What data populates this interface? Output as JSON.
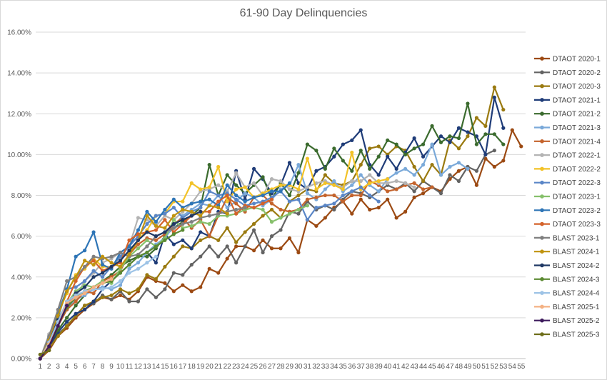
{
  "chart_data": {
    "type": "line",
    "title": "61-90 Day Delinquencies",
    "xlabel": "",
    "ylabel": "",
    "ylim": [
      0,
      0.16
    ],
    "y_ticks": [
      "0.00%",
      "2.00%",
      "4.00%",
      "6.00%",
      "8.00%",
      "10.00%",
      "12.00%",
      "14.00%",
      "16.00%"
    ],
    "x_categories": [
      1,
      2,
      3,
      4,
      5,
      6,
      7,
      8,
      9,
      10,
      11,
      12,
      13,
      14,
      15,
      16,
      17,
      18,
      19,
      20,
      21,
      22,
      23,
      24,
      25,
      26,
      27,
      28,
      29,
      30,
      31,
      32,
      33,
      34,
      35,
      36,
      37,
      38,
      39,
      40,
      41,
      42,
      43,
      44,
      45,
      46,
      47,
      48,
      49,
      50,
      51,
      52,
      53,
      54,
      55
    ],
    "grid": "horizontal",
    "legend_position": "right",
    "series": [
      {
        "name": "DTAOT 2020-1",
        "color": "#9c4a13",
        "values": [
          0,
          0.004,
          0.011,
          0.015,
          0.02,
          0.024,
          0.027,
          0.03,
          0.029,
          0.031,
          0.029,
          0.033,
          0.04,
          0.038,
          0.037,
          0.033,
          0.036,
          0.033,
          0.035,
          0.044,
          0.042,
          0.049,
          0.055,
          0.055,
          0.053,
          0.058,
          0.054,
          0.054,
          0.059,
          0.052,
          0.068,
          0.065,
          0.069,
          0.074,
          0.077,
          0.071,
          0.078,
          0.073,
          0.074,
          0.078,
          0.069,
          0.072,
          0.079,
          0.081,
          0.084,
          0.082,
          0.088,
          0.092,
          0.094,
          0.085,
          0.098,
          0.094,
          0.097,
          0.112,
          0.104
        ]
      },
      {
        "name": "DTAOT 2020-2",
        "color": "#636363",
        "values": [
          0,
          0.005,
          0.012,
          0.016,
          0.021,
          0.026,
          0.027,
          0.031,
          0.029,
          0.033,
          0.028,
          0.028,
          0.034,
          0.03,
          0.034,
          0.042,
          0.041,
          0.046,
          0.05,
          0.055,
          0.05,
          0.055,
          0.047,
          0.055,
          0.063,
          0.052,
          0.06,
          0.063,
          0.072,
          0.071,
          0.077,
          0.073,
          0.075,
          0.073,
          0.078,
          0.082,
          0.081,
          0.079,
          0.082,
          0.085,
          0.083,
          0.086,
          0.082,
          0.087,
          0.084,
          0.081,
          0.09,
          0.087,
          0.094,
          0.092,
          0.1,
          0.102
        ]
      },
      {
        "name": "DTAOT 2020-3",
        "color": "#9a7a10",
        "values": [
          0,
          0.005,
          0.011,
          0.016,
          0.021,
          0.026,
          0.028,
          0.03,
          0.031,
          0.034,
          0.032,
          0.034,
          0.041,
          0.039,
          0.045,
          0.05,
          0.055,
          0.054,
          0.058,
          0.06,
          0.058,
          0.064,
          0.057,
          0.062,
          0.066,
          0.07,
          0.073,
          0.069,
          0.077,
          0.08,
          0.083,
          0.082,
          0.09,
          0.086,
          0.085,
          0.087,
          0.095,
          0.103,
          0.104,
          0.1,
          0.104,
          0.102,
          0.094,
          0.087,
          0.095,
          0.09,
          0.107,
          0.103,
          0.109,
          0.118,
          0.114,
          0.133,
          0.122
        ]
      },
      {
        "name": "DTAOT 2021-1",
        "color": "#1f3c78",
        "values": [
          0,
          0.006,
          0.013,
          0.018,
          0.022,
          0.024,
          0.028,
          0.034,
          0.038,
          0.042,
          0.046,
          0.05,
          0.052,
          0.047,
          0.061,
          0.056,
          0.058,
          0.054,
          0.062,
          0.06,
          0.072,
          0.071,
          0.092,
          0.078,
          0.093,
          0.088,
          0.081,
          0.085,
          0.096,
          0.086,
          0.083,
          0.092,
          0.094,
          0.099,
          0.105,
          0.107,
          0.112,
          0.095,
          0.09,
          0.099,
          0.093,
          0.101,
          0.108,
          0.099,
          0.104,
          0.109,
          0.106,
          0.113,
          0.111,
          0.109,
          0.1,
          0.128,
          0.113
        ]
      },
      {
        "name": "DTAOT 2021-2",
        "color": "#3b6b2e",
        "values": [
          0,
          0.007,
          0.014,
          0.02,
          0.026,
          0.031,
          0.035,
          0.038,
          0.041,
          0.045,
          0.048,
          0.05,
          0.05,
          0.054,
          0.06,
          0.064,
          0.067,
          0.07,
          0.074,
          0.095,
          0.08,
          0.09,
          0.085,
          0.081,
          0.085,
          0.089,
          0.078,
          0.086,
          0.08,
          0.091,
          0.105,
          0.102,
          0.093,
          0.103,
          0.097,
          0.092,
          0.102,
          0.093,
          0.099,
          0.107,
          0.105,
          0.1,
          0.103,
          0.105,
          0.114,
          0.106,
          0.109,
          0.108,
          0.125,
          0.105,
          0.11,
          0.11,
          0.105
        ]
      },
      {
        "name": "DTAOT 2021-3",
        "color": "#7aa9d9",
        "values": [
          0,
          0.008,
          0.017,
          0.024,
          0.029,
          0.031,
          0.034,
          0.035,
          0.034,
          0.036,
          0.044,
          0.047,
          0.052,
          0.056,
          0.059,
          0.065,
          0.07,
          0.073,
          0.076,
          0.075,
          0.08,
          0.074,
          0.077,
          0.081,
          0.079,
          0.075,
          0.078,
          0.083,
          0.085,
          0.095,
          0.081,
          0.078,
          0.083,
          0.087,
          0.082,
          0.085,
          0.09,
          0.085,
          0.082,
          0.088,
          0.091,
          0.093,
          0.09,
          0.095,
          0.105,
          0.09,
          0.094,
          0.096,
          0.093
        ]
      },
      {
        "name": "DTAOT 2021-4",
        "color": "#c4632c",
        "values": [
          0,
          0.01,
          0.016,
          0.024,
          0.028,
          0.033,
          0.032,
          0.038,
          0.04,
          0.043,
          0.051,
          0.056,
          0.059,
          0.058,
          0.061,
          0.066,
          0.069,
          0.064,
          0.068,
          0.06,
          0.07,
          0.079,
          0.076,
          0.072,
          0.079,
          0.08,
          0.076,
          0.073,
          0.072,
          0.073,
          0.078,
          0.079,
          0.08,
          0.08,
          0.077,
          0.08,
          0.08,
          0.087,
          0.085,
          0.082,
          0.083,
          0.085,
          0.086,
          0.083,
          0.084
        ]
      },
      {
        "name": "DTAOT 2022-1",
        "color": "#b3b3b3",
        "values": [
          0,
          0.012,
          0.02,
          0.026,
          0.03,
          0.038,
          0.042,
          0.047,
          0.049,
          0.052,
          0.055,
          0.069,
          0.068,
          0.065,
          0.07,
          0.068,
          0.072,
          0.076,
          0.082,
          0.083,
          0.085,
          0.082,
          0.091,
          0.084,
          0.086,
          0.08,
          0.088,
          0.087,
          0.083,
          0.082,
          0.084,
          0.086,
          0.087,
          0.085,
          0.084,
          0.087,
          0.087,
          0.09,
          0.086,
          0.086,
          0.087,
          0.086,
          0.084
        ]
      },
      {
        "name": "DTAOT 2022-2",
        "color": "#f2c227",
        "values": [
          0,
          0.01,
          0.022,
          0.032,
          0.041,
          0.044,
          0.049,
          0.045,
          0.045,
          0.05,
          0.052,
          0.058,
          0.063,
          0.07,
          0.071,
          0.077,
          0.077,
          0.086,
          0.083,
          0.084,
          0.094,
          0.077,
          0.083,
          0.084,
          0.079,
          0.081,
          0.083,
          0.085,
          0.085,
          0.083,
          0.098,
          0.083,
          0.086,
          0.085,
          0.083,
          0.101,
          0.083,
          0.086,
          0.087,
          0.088
        ]
      },
      {
        "name": "DTAOT 2022-3",
        "color": "#5a86c7",
        "values": [
          0,
          0.008,
          0.02,
          0.034,
          0.035,
          0.038,
          0.043,
          0.04,
          0.045,
          0.05,
          0.055,
          0.06,
          0.066,
          0.07,
          0.071,
          0.074,
          0.069,
          0.072,
          0.074,
          0.082,
          0.08,
          0.081,
          0.078,
          0.075,
          0.076,
          0.077,
          0.079,
          0.082,
          0.077,
          0.078,
          0.068,
          0.074,
          0.075,
          0.076,
          0.08,
          0.082,
          0.084,
          0.08,
          0.077
        ]
      },
      {
        "name": "DTAOT 2023-1",
        "color": "#86c06b",
        "values": [
          0,
          0.009,
          0.019,
          0.027,
          0.033,
          0.036,
          0.035,
          0.038,
          0.037,
          0.044,
          0.05,
          0.054,
          0.058,
          0.055,
          0.059,
          0.068,
          0.064,
          0.065,
          0.067,
          0.066,
          0.07,
          0.07,
          0.071,
          0.073,
          0.074,
          0.073,
          0.067,
          0.069,
          0.071,
          0.073,
          0.075
        ]
      },
      {
        "name": "DTAOT 2023-2",
        "color": "#2e75b6",
        "values": [
          0,
          0.01,
          0.022,
          0.034,
          0.05,
          0.053,
          0.062,
          0.046,
          0.044,
          0.052,
          0.055,
          0.063,
          0.072,
          0.067,
          0.073,
          0.078,
          0.074,
          0.076,
          0.077,
          0.078,
          0.075,
          0.085,
          0.08,
          0.077,
          0.079,
          0.08,
          0.082,
          0.082,
          0.086
        ]
      },
      {
        "name": "DTAOT 2023-3",
        "color": "#d4622a",
        "values": [
          0,
          0.008,
          0.018,
          0.028,
          0.038,
          0.045,
          0.048,
          0.043,
          0.045,
          0.047,
          0.058,
          0.061,
          0.062,
          0.063,
          0.068,
          0.062,
          0.066,
          0.07,
          0.072,
          0.072,
          0.077,
          0.08,
          0.071,
          0.075,
          0.074,
          0.076,
          0.078
        ]
      },
      {
        "name": "BLAST 2023-1",
        "color": "#7f7f7f",
        "values": [
          0,
          0.011,
          0.024,
          0.038,
          0.04,
          0.045,
          0.05,
          0.049,
          0.05,
          0.052,
          0.05,
          0.051,
          0.055,
          0.06,
          0.062,
          0.064,
          0.066,
          0.067,
          0.069,
          0.07,
          0.071,
          0.072,
          0.073,
          0.074
        ]
      },
      {
        "name": "BLAST 2024-1",
        "color": "#c0930f",
        "values": [
          0,
          0.009,
          0.021,
          0.033,
          0.04,
          0.048,
          0.046,
          0.05,
          0.047,
          0.045,
          0.051,
          0.058,
          0.07,
          0.065,
          0.064,
          0.07,
          0.073,
          0.072,
          0.07,
          0.075,
          0.074,
          0.071
        ]
      },
      {
        "name": "BLAST 2024-2",
        "color": "#1f3864",
        "values": [
          0,
          0.008,
          0.019,
          0.026,
          0.032,
          0.035,
          0.04,
          0.042,
          0.045,
          0.048,
          0.053,
          0.058,
          0.062,
          0.06,
          0.062,
          0.066,
          0.068,
          0.07,
          0.072
        ]
      },
      {
        "name": "BLAST 2024-3",
        "color": "#5b8a32",
        "values": [
          0,
          0.007,
          0.017,
          0.025,
          0.03,
          0.033,
          0.035,
          0.037,
          0.038,
          0.042,
          0.046,
          0.05,
          0.052,
          0.055,
          0.058,
          0.061,
          0.063
        ]
      },
      {
        "name": "BLAST 2024-4",
        "color": "#9dc3e6",
        "values": [
          0,
          0.008,
          0.018,
          0.028,
          0.031,
          0.033,
          0.034,
          0.034,
          0.035,
          0.038,
          0.042,
          0.044,
          0.047,
          0.05
        ]
      },
      {
        "name": "BLAST 2025-1",
        "color": "#f4b183",
        "values": [
          0,
          0.007,
          0.016,
          0.027,
          0.03,
          0.032,
          0.035,
          0.037,
          0.039
        ]
      },
      {
        "name": "BLAST 2025-2",
        "color": "#3d1a5c",
        "values": [
          0,
          0.006,
          0.016,
          0.026
        ]
      },
      {
        "name": "BLAST 2025-3",
        "color": "#6e6e1a",
        "values": [
          0.002,
          0.004
        ]
      }
    ]
  }
}
